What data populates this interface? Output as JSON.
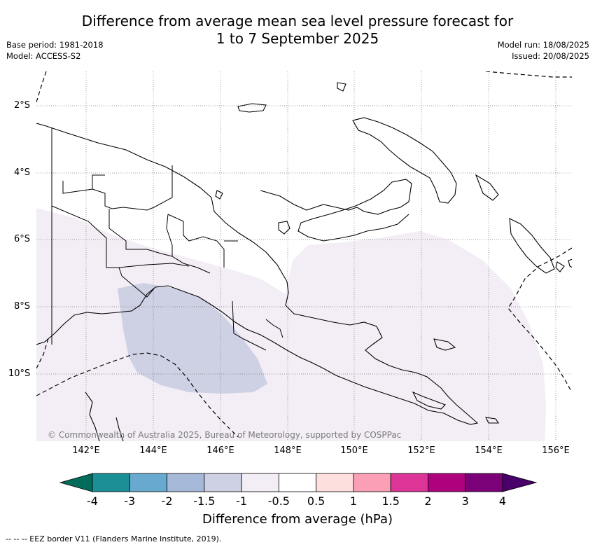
{
  "header": {
    "title_line1": "Difference from average mean sea level pressure forecast for",
    "title_line2": "1 to 7 September 2025",
    "base_period": "Base period: 1981-2018",
    "model": "Model: ACCESS-S2",
    "model_run": "Model run: 18/08/2025",
    "issued": "Issued: 20/08/2025"
  },
  "map": {
    "region": "Papua New Guinea",
    "lat_labels": [
      "2°S",
      "4°S",
      "6°S",
      "8°S",
      "10°S"
    ],
    "lon_labels": [
      "142°E",
      "144°E",
      "146°E",
      "148°E",
      "150°E",
      "152°E",
      "154°E",
      "156°E"
    ],
    "copyright": "© Commonwealth of Australia 2025, Bureau of Meteorology, supported by COSPPac",
    "anomaly_classes_shown": [
      {
        "range": "-1.5 to -1",
        "color": "#ced1e4"
      },
      {
        "range": "-1 to -0.5",
        "color": "#f3edf5"
      }
    ]
  },
  "colorbar": {
    "title": "Difference from average (hPa)",
    "ticks": [
      "-4",
      "-3",
      "-2",
      "-1.5",
      "-1",
      "-0.5",
      "0.5",
      "1",
      "1.5",
      "2",
      "3",
      "4"
    ],
    "colors": [
      "#1a9096",
      "#67a9cf",
      "#a6b9d8",
      "#ced1e4",
      "#f3edf5",
      "#ffffff",
      "#fde0dd",
      "#fa9fb5",
      "#dd3497",
      "#ae017e",
      "#7a0177"
    ],
    "extend_low_color": "#016c59",
    "extend_high_color": "#49006a"
  },
  "footer": {
    "eez_note": "-- -- -- EEZ border V11 (Flanders Marine Institute, 2019)."
  }
}
